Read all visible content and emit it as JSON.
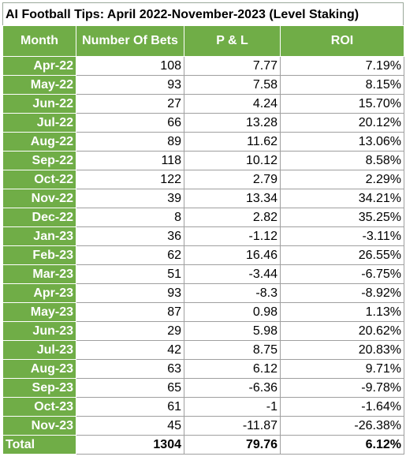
{
  "title": "AI Football Tips: April 2022-November-2023 (Level Staking)",
  "headers": [
    "Month",
    "Number Of Bets",
    "P & L",
    "ROI"
  ],
  "rows": [
    [
      "Apr-22",
      "108",
      "7.77",
      "7.19%"
    ],
    [
      "May-22",
      "93",
      "7.58",
      "8.15%"
    ],
    [
      "Jun-22",
      "27",
      "4.24",
      "15.70%"
    ],
    [
      "Jul-22",
      "66",
      "13.28",
      "20.12%"
    ],
    [
      "Aug-22",
      "89",
      "11.62",
      "13.06%"
    ],
    [
      "Sep-22",
      "118",
      "10.12",
      "8.58%"
    ],
    [
      "Oct-22",
      "122",
      "2.79",
      "2.29%"
    ],
    [
      "Nov-22",
      "39",
      "13.34",
      "34.21%"
    ],
    [
      "Dec-22",
      "8",
      "2.82",
      "35.25%"
    ],
    [
      "Jan-23",
      "36",
      "-1.12",
      "-3.11%"
    ],
    [
      "Feb-23",
      "62",
      "16.46",
      "26.55%"
    ],
    [
      "Mar-23",
      "51",
      "-3.44",
      "-6.75%"
    ],
    [
      "Apr-23",
      "93",
      "-8.3",
      "-8.92%"
    ],
    [
      "May-23",
      "87",
      "0.98",
      "1.13%"
    ],
    [
      "Jun-23",
      "29",
      "5.98",
      "20.62%"
    ],
    [
      "Jul-23",
      "42",
      "8.75",
      "20.83%"
    ],
    [
      "Aug-23",
      "63",
      "6.12",
      "9.71%"
    ],
    [
      "Sep-23",
      "65",
      "-6.36",
      "-9.78%"
    ],
    [
      "Oct-23",
      "61",
      "-1",
      "-1.64%"
    ],
    [
      "Nov-23",
      "45",
      "-11.87",
      "-26.38%"
    ]
  ],
  "total": [
    "Total",
    "1304",
    "79.76",
    "6.12%"
  ],
  "colors": {
    "header_green": "#70ad47",
    "header_text": "#ffffff"
  }
}
